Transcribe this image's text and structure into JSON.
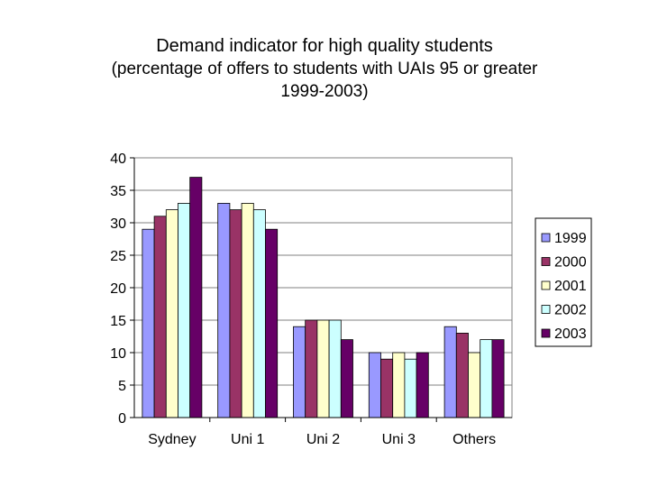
{
  "title": "Demand indicator for high quality students",
  "subtitle_line1": "(percentage of offers to students with UAIs 95 or greater",
  "subtitle_line2": "1999-2003)",
  "chart_data": {
    "type": "bar",
    "title": "Demand indicator for high quality students",
    "subtitle": "(percentage of offers to students with UAIs 95 or greater 1999-2003)",
    "xlabel": "",
    "ylabel": "",
    "ylim": [
      0,
      40
    ],
    "yticks": [
      0,
      5,
      10,
      15,
      20,
      25,
      30,
      35,
      40
    ],
    "grid": true,
    "legend_position": "right",
    "categories": [
      "Sydney",
      "Uni 1",
      "Uni 2",
      "Uni 3",
      "Others"
    ],
    "series": [
      {
        "name": "1999",
        "color": "#9999ff",
        "values": [
          29,
          33,
          14,
          10,
          14
        ]
      },
      {
        "name": "2000",
        "color": "#993366",
        "values": [
          31,
          32,
          15,
          9,
          13
        ]
      },
      {
        "name": "2001",
        "color": "#ffffcc",
        "values": [
          32,
          33,
          15,
          10,
          10
        ]
      },
      {
        "name": "2002",
        "color": "#ccffff",
        "values": [
          33,
          32,
          15,
          9,
          12
        ]
      },
      {
        "name": "2003",
        "color": "#660066",
        "values": [
          37,
          29,
          12,
          10,
          12
        ]
      }
    ]
  }
}
